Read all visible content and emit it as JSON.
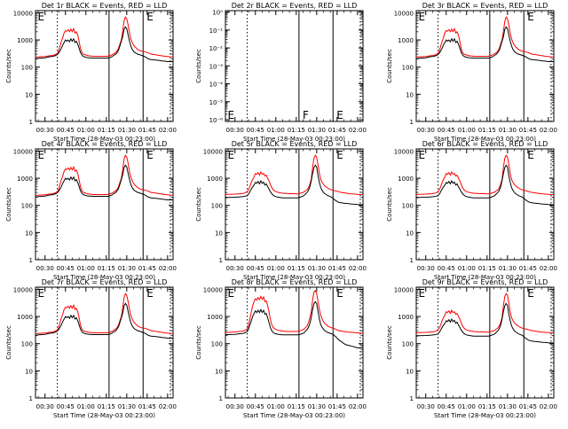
{
  "common": {
    "xlabel": "Start Time (28-May-03 00:23:00)",
    "ylabel": "Counts/sec",
    "x_ticks": [
      "00:30",
      "00:45",
      "01:00",
      "01:15",
      "01:30",
      "01:45",
      "02:00"
    ],
    "x_tick_minutes": [
      30,
      45,
      60,
      75,
      90,
      105,
      120
    ],
    "xlim_minutes": [
      23,
      124
    ],
    "y_ticks_standard": [
      "1",
      "10",
      "100",
      "1000",
      "10000"
    ],
    "y_tick_values_standard": [
      1,
      10,
      100,
      1000,
      10000
    ],
    "ylim_standard": [
      1,
      12000
    ],
    "y_ticks_det2": [
      "10⁰",
      "10⁻¹",
      "10⁻²",
      "10⁻³",
      "10⁻⁴",
      "10⁻⁵",
      "10⁻⁶"
    ],
    "y_tick_values_det2": [
      1,
      0.1,
      0.01,
      0.001,
      0.0001,
      1e-05,
      1e-06
    ],
    "ylim_det2": [
      8e-07,
      1.2
    ],
    "y_scale": "log",
    "colors": {
      "events": "#000000",
      "lld": "#ff0000",
      "axes": "#000000"
    },
    "vlines": [
      {
        "x_minute": 39,
        "style": "dotted"
      },
      {
        "x_minute": 77,
        "style": "solid"
      },
      {
        "x_minute": 102,
        "style": "solid"
      },
      {
        "x_minute": 122,
        "style": "dotted"
      }
    ],
    "marker_labels": [
      "E",
      "F",
      "E"
    ],
    "marker_label_minutes": [
      24,
      79,
      104
    ]
  },
  "chart_data": [
    {
      "type": "line",
      "panel_id": "det-1r",
      "title": "Det 1r BLACK = Events, RED = LLD",
      "profile": "a"
    },
    {
      "type": "line",
      "panel_id": "det-2r",
      "title": "Det 2r BLACK = Events, RED = LLD",
      "profile": "empty"
    },
    {
      "type": "line",
      "panel_id": "det-3r",
      "title": "Det 3r BLACK = Events, RED = LLD",
      "profile": "a"
    },
    {
      "type": "line",
      "panel_id": "det-4r",
      "title": "Det 4r BLACK = Events, RED = LLD",
      "profile": "a"
    },
    {
      "type": "line",
      "panel_id": "det-5r",
      "title": "Det 5r BLACK = Events, RED = LLD",
      "profile": "b"
    },
    {
      "type": "line",
      "panel_id": "det-6r",
      "title": "Det 6r BLACK = Events, RED = LLD",
      "profile": "b"
    },
    {
      "type": "line",
      "panel_id": "det-7r",
      "title": "Det 7r BLACK = Events, RED = LLD",
      "profile": "a"
    },
    {
      "type": "line",
      "panel_id": "det-8r",
      "title": "Det 8r BLACK = Events, RED = LLD",
      "profile": "c"
    },
    {
      "type": "line",
      "panel_id": "det-9r",
      "title": "Det 9r BLACK = Events, RED = LLD",
      "profile": "b"
    }
  ],
  "profiles": {
    "a": {
      "x_minutes": [
        23,
        25,
        30,
        33,
        36,
        38,
        39,
        40,
        41,
        42,
        43,
        44,
        45,
        46,
        47,
        48,
        49,
        50,
        51,
        52,
        53,
        54,
        55,
        56,
        57,
        58,
        59,
        60,
        61,
        62,
        63,
        65,
        68,
        70,
        73,
        75,
        76,
        77,
        78,
        79,
        80,
        81,
        82,
        83,
        84,
        85,
        86,
        87,
        88,
        89,
        90,
        91,
        92,
        93,
        94,
        95,
        96,
        97,
        98,
        99,
        100,
        101,
        102,
        104,
        106,
        108,
        110,
        112,
        114,
        116,
        118,
        120,
        122,
        124
      ],
      "lld": [
        230,
        240,
        245,
        260,
        270,
        300,
        320,
        400,
        600,
        900,
        1200,
        1800,
        2200,
        2100,
        2400,
        2000,
        2500,
        2000,
        2600,
        1800,
        2000,
        1500,
        900,
        500,
        350,
        300,
        290,
        280,
        270,
        260,
        260,
        250,
        250,
        250,
        250,
        250,
        250,
        260,
        270,
        280,
        300,
        320,
        350,
        400,
        500,
        700,
        1000,
        2000,
        5000,
        7000,
        6000,
        3500,
        1800,
        1100,
        800,
        650,
        560,
        500,
        450,
        420,
        400,
        380,
        380,
        360,
        330,
        300,
        290,
        280,
        270,
        260,
        250,
        245,
        240,
        235
      ],
      "events": [
        200,
        210,
        220,
        240,
        250,
        270,
        290,
        330,
        400,
        500,
        650,
        800,
        1000,
        900,
        1000,
        850,
        1100,
        900,
        1100,
        800,
        900,
        700,
        500,
        350,
        280,
        250,
        240,
        230,
        225,
        220,
        220,
        215,
        215,
        215,
        215,
        215,
        215,
        220,
        230,
        240,
        260,
        280,
        300,
        350,
        420,
        600,
        900,
        1300,
        2500,
        3000,
        2600,
        1500,
        900,
        600,
        450,
        380,
        340,
        320,
        300,
        290,
        280,
        270,
        260,
        230,
        200,
        190,
        185,
        180,
        175,
        170,
        165,
        160,
        160,
        160
      ]
    },
    "b": {
      "x_minutes": [
        23,
        25,
        30,
        33,
        36,
        38,
        39,
        40,
        41,
        42,
        43,
        44,
        45,
        46,
        47,
        48,
        49,
        50,
        51,
        52,
        53,
        54,
        55,
        56,
        57,
        58,
        59,
        60,
        61,
        62,
        63,
        65,
        68,
        70,
        73,
        75,
        76,
        77,
        78,
        79,
        80,
        81,
        82,
        83,
        84,
        85,
        86,
        87,
        88,
        89,
        90,
        91,
        92,
        93,
        94,
        95,
        96,
        97,
        98,
        99,
        100,
        101,
        102,
        104,
        106,
        108,
        110,
        112,
        114,
        116,
        118,
        120,
        122,
        124
      ],
      "lld": [
        250,
        255,
        260,
        265,
        275,
        300,
        320,
        380,
        500,
        700,
        900,
        1100,
        1500,
        1400,
        1600,
        1300,
        1700,
        1400,
        1500,
        1200,
        1300,
        1000,
        800,
        600,
        450,
        380,
        340,
        320,
        310,
        300,
        290,
        280,
        275,
        270,
        270,
        265,
        265,
        270,
        280,
        290,
        300,
        320,
        350,
        380,
        450,
        600,
        900,
        2500,
        5500,
        7000,
        6000,
        3000,
        1500,
        900,
        700,
        600,
        520,
        480,
        440,
        410,
        390,
        370,
        360,
        340,
        320,
        300,
        290,
        280,
        270,
        265,
        260,
        255,
        250,
        250
      ],
      "events": [
        190,
        195,
        200,
        205,
        210,
        220,
        230,
        260,
        320,
        400,
        480,
        560,
        700,
        650,
        760,
        620,
        800,
        650,
        720,
        560,
        620,
        480,
        400,
        320,
        270,
        240,
        220,
        210,
        205,
        200,
        195,
        190,
        190,
        190,
        190,
        190,
        190,
        195,
        200,
        210,
        220,
        240,
        270,
        300,
        360,
        480,
        800,
        1500,
        2500,
        3000,
        2600,
        1200,
        700,
        450,
        360,
        300,
        270,
        250,
        230,
        220,
        210,
        200,
        180,
        150,
        130,
        125,
        120,
        118,
        115,
        112,
        110,
        108,
        106,
        105
      ]
    },
    "c": {
      "x_minutes": [
        23,
        25,
        30,
        33,
        36,
        38,
        39,
        40,
        41,
        42,
        43,
        44,
        45,
        46,
        47,
        48,
        49,
        50,
        51,
        52,
        53,
        54,
        55,
        56,
        57,
        58,
        59,
        60,
        61,
        62,
        63,
        65,
        68,
        70,
        73,
        75,
        76,
        77,
        78,
        79,
        80,
        81,
        82,
        83,
        84,
        85,
        86,
        87,
        88,
        89,
        90,
        91,
        92,
        93,
        94,
        95,
        96,
        97,
        98,
        99,
        100,
        101,
        102,
        104,
        106,
        108,
        110,
        112,
        114,
        116,
        118,
        120,
        122,
        124
      ],
      "lld": [
        250,
        260,
        270,
        280,
        290,
        320,
        350,
        500,
        800,
        1500,
        2500,
        3500,
        4500,
        4000,
        5000,
        4200,
        5500,
        4300,
        5200,
        3500,
        3800,
        2500,
        1500,
        800,
        500,
        400,
        360,
        340,
        320,
        310,
        300,
        290,
        280,
        280,
        280,
        280,
        280,
        290,
        300,
        310,
        330,
        350,
        400,
        450,
        600,
        900,
        1500,
        4000,
        8000,
        9000,
        7000,
        3500,
        1800,
        1100,
        800,
        650,
        560,
        500,
        450,
        420,
        400,
        380,
        380,
        340,
        300,
        290,
        280,
        270,
        265,
        260,
        255,
        250,
        245,
        240
      ],
      "events": [
        210,
        215,
        220,
        230,
        240,
        260,
        280,
        350,
        500,
        700,
        1000,
        1300,
        1600,
        1400,
        1700,
        1400,
        1800,
        1400,
        1700,
        1200,
        1300,
        900,
        600,
        400,
        300,
        260,
        240,
        230,
        225,
        220,
        215,
        210,
        210,
        210,
        210,
        210,
        210,
        215,
        220,
        230,
        240,
        260,
        300,
        330,
        400,
        550,
        900,
        1800,
        3000,
        3500,
        3000,
        1500,
        800,
        500,
        400,
        340,
        300,
        280,
        260,
        250,
        240,
        230,
        220,
        180,
        140,
        120,
        100,
        90,
        85,
        80,
        75,
        70,
        70,
        70
      ]
    }
  }
}
